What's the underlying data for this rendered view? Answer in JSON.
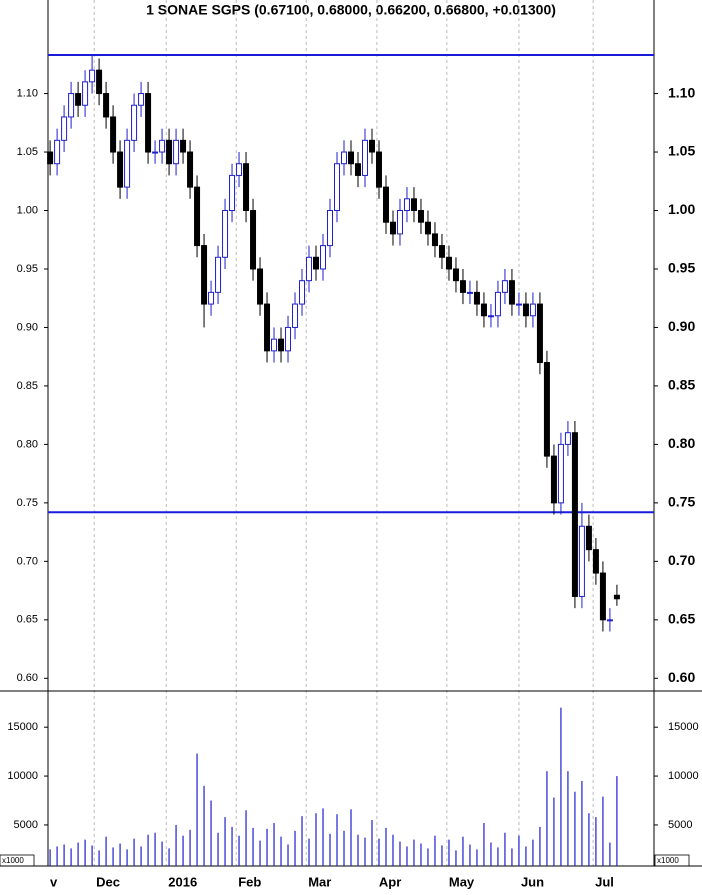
{
  "chart_data": {
    "type": "candlestick",
    "title": "1 SONAE SGPS (0.67100, 0.68000, 0.66200, 0.66800, +0.01300)",
    "up_color": "#1f1fd0",
    "down_color": "#000000",
    "hline_color": "#1a1adb",
    "hlines": [
      1.133,
      0.742
    ],
    "xlim": [
      -0.3,
      86.3
    ],
    "xticks": [
      {
        "value": -0.3,
        "label": "v"
      },
      {
        "value": 6.3,
        "label": "Dec"
      },
      {
        "value": 16.6,
        "label": "2016"
      },
      {
        "value": 26.6,
        "label": "Feb"
      },
      {
        "value": 36.6,
        "label": "Mar"
      },
      {
        "value": 46.7,
        "label": "Apr"
      },
      {
        "value": 56.7,
        "label": "May"
      },
      {
        "value": 67,
        "label": "Jun"
      },
      {
        "value": 77.6,
        "label": "Jul"
      }
    ],
    "ylim": [
      0.59,
      1.18
    ],
    "yticks": [
      {
        "value": 0.6,
        "label": "0.60"
      },
      {
        "value": 0.65,
        "label": "0.65"
      },
      {
        "value": 0.7,
        "label": "0.70"
      },
      {
        "value": 0.75,
        "label": "0.75"
      },
      {
        "value": 0.8,
        "label": "0.80"
      },
      {
        "value": 0.85,
        "label": "0.85"
      },
      {
        "value": 0.9,
        "label": "0.90"
      },
      {
        "value": 0.95,
        "label": "0.95"
      },
      {
        "value": 1.0,
        "label": "1.00"
      },
      {
        "value": 1.05,
        "label": "1.05"
      },
      {
        "value": 1.1,
        "label": "1.10"
      }
    ],
    "open": [
      1.05,
      1.04,
      1.06,
      1.08,
      1.1,
      1.09,
      1.11,
      1.12,
      1.1,
      1.08,
      1.05,
      1.02,
      1.06,
      1.09,
      1.1,
      1.05,
      1.05,
      1.06,
      1.04,
      1.06,
      1.05,
      1.02,
      0.97,
      0.92,
      0.93,
      0.96,
      1.0,
      1.03,
      1.04,
      1.0,
      0.95,
      0.92,
      0.88,
      0.89,
      0.88,
      0.9,
      0.92,
      0.94,
      0.96,
      0.95,
      0.97,
      1.0,
      1.04,
      1.05,
      1.04,
      1.03,
      1.06,
      1.05,
      1.02,
      0.99,
      0.98,
      1.0,
      1.01,
      1.0,
      0.99,
      0.98,
      0.97,
      0.96,
      0.95,
      0.94,
      0.93,
      0.93,
      0.92,
      0.91,
      0.91,
      0.93,
      0.94,
      0.92,
      0.92,
      0.91,
      0.92,
      0.87,
      0.79,
      0.75,
      0.8,
      0.81,
      0.67,
      0.73,
      0.71,
      0.69,
      0.65,
      0.671
    ],
    "high": [
      1.06,
      1.07,
      1.09,
      1.11,
      1.11,
      1.12,
      1.133,
      1.13,
      1.11,
      1.09,
      1.06,
      1.07,
      1.1,
      1.11,
      1.11,
      1.06,
      1.07,
      1.07,
      1.07,
      1.07,
      1.06,
      1.03,
      0.98,
      0.94,
      0.97,
      1.01,
      1.04,
      1.05,
      1.05,
      1.01,
      0.96,
      0.93,
      0.9,
      0.9,
      0.91,
      0.93,
      0.95,
      0.97,
      0.97,
      0.98,
      1.01,
      1.05,
      1.06,
      1.06,
      1.05,
      1.07,
      1.07,
      1.06,
      1.03,
      1.0,
      1.01,
      1.02,
      1.02,
      1.01,
      1.0,
      0.99,
      0.98,
      0.97,
      0.96,
      0.95,
      0.94,
      0.94,
      0.93,
      0.92,
      0.94,
      0.95,
      0.95,
      0.93,
      0.93,
      0.93,
      0.93,
      0.88,
      0.8,
      0.81,
      0.82,
      0.82,
      0.75,
      0.74,
      0.72,
      0.7,
      0.66,
      0.68
    ],
    "low": [
      1.03,
      1.03,
      1.05,
      1.07,
      1.08,
      1.08,
      1.1,
      1.09,
      1.07,
      1.04,
      1.01,
      1.01,
      1.05,
      1.08,
      1.04,
      1.04,
      1.04,
      1.03,
      1.03,
      1.04,
      1.01,
      0.96,
      0.9,
      0.91,
      0.92,
      0.95,
      0.99,
      1.02,
      0.99,
      0.94,
      0.91,
      0.87,
      0.87,
      0.87,
      0.87,
      0.89,
      0.91,
      0.93,
      0.94,
      0.94,
      0.96,
      0.99,
      1.03,
      1.03,
      1.02,
      1.02,
      1.04,
      1.01,
      0.98,
      0.97,
      0.97,
      0.99,
      0.99,
      0.98,
      0.97,
      0.96,
      0.95,
      0.94,
      0.93,
      0.92,
      0.92,
      0.91,
      0.9,
      0.9,
      0.9,
      0.92,
      0.91,
      0.91,
      0.9,
      0.9,
      0.86,
      0.78,
      0.74,
      0.74,
      0.79,
      0.66,
      0.66,
      0.7,
      0.68,
      0.64,
      0.64,
      0.662
    ],
    "close": [
      1.04,
      1.06,
      1.08,
      1.1,
      1.09,
      1.11,
      1.12,
      1.1,
      1.08,
      1.05,
      1.02,
      1.06,
      1.09,
      1.1,
      1.05,
      1.05,
      1.06,
      1.04,
      1.06,
      1.05,
      1.02,
      0.97,
      0.92,
      0.93,
      0.96,
      1.0,
      1.03,
      1.04,
      1.0,
      0.95,
      0.92,
      0.88,
      0.89,
      0.88,
      0.9,
      0.92,
      0.94,
      0.96,
      0.95,
      0.97,
      1.0,
      1.04,
      1.05,
      1.04,
      1.03,
      1.06,
      1.05,
      1.02,
      0.99,
      0.98,
      1.0,
      1.01,
      1.0,
      0.99,
      0.98,
      0.97,
      0.96,
      0.95,
      0.94,
      0.93,
      0.93,
      0.92,
      0.91,
      0.91,
      0.93,
      0.94,
      0.92,
      0.92,
      0.91,
      0.92,
      0.87,
      0.79,
      0.75,
      0.8,
      0.81,
      0.67,
      0.73,
      0.71,
      0.69,
      0.65,
      0.65,
      0.668
    ],
    "volume": {
      "color": "#1f1fd0",
      "unit_label": "x1000",
      "ylim": [
        800,
        18600
      ],
      "yticks": [
        5000,
        10000,
        15000
      ],
      "values": [
        2500,
        2800,
        3000,
        2600,
        3200,
        3500,
        2900,
        2400,
        3800,
        2700,
        3100,
        2500,
        3600,
        2800,
        4000,
        4200,
        3300,
        2600,
        5000,
        3900,
        4500,
        12300,
        9000,
        7500,
        4200,
        5800,
        4800,
        3900,
        6500,
        4700,
        3400,
        4600,
        5200,
        3800,
        3000,
        4400,
        5900,
        3600,
        6200,
        6700,
        4100,
        6100,
        4400,
        6600,
        4000,
        3700,
        5500,
        3600,
        4700,
        4000,
        3300,
        2800,
        3500,
        3100,
        2600,
        3900,
        2900,
        3500,
        2400,
        3800,
        3000,
        2500,
        5200,
        3200,
        2700,
        4200,
        2600,
        3900,
        2800,
        3500,
        4800,
        10500,
        7800,
        17000,
        10500,
        8400,
        9500,
        6200,
        5800,
        7900,
        3200,
        10000
      ]
    }
  }
}
